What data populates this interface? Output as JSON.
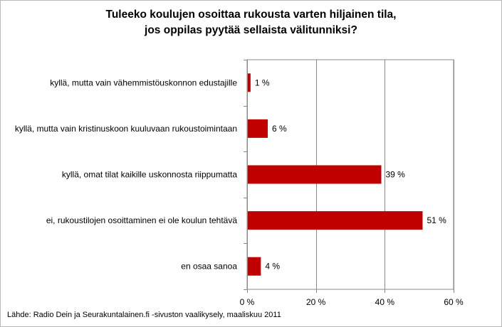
{
  "chart_data": {
    "type": "bar",
    "orientation": "horizontal",
    "title_lines": [
      "Tuleeko koulujen osoittaa rukousta varten hiljainen tila,",
      "jos oppilas pyytää sellaista välitunniksi?"
    ],
    "categories": [
      "kyllä, mutta vain vähemmistöuskonnon edustajille",
      "kyllä, mutta vain kristinuskoon kuuluvaan rukoustoimintaan",
      "kyllä, omat tilat kaikille uskonnosta riippumatta",
      "ei, rukoustilojen osoittaminen ei ole koulun tehtävä",
      "en osaa sanoa"
    ],
    "values": [
      1,
      6,
      39,
      51,
      4
    ],
    "value_labels": [
      "1 %",
      "6 %",
      "39 %",
      "51 %",
      "4 %"
    ],
    "xlim": [
      0,
      60
    ],
    "xticks": [
      0,
      20,
      40,
      60
    ],
    "xtick_labels": [
      "0 %",
      "20 %",
      "40 %",
      "60 %"
    ],
    "grid": true,
    "bar_color": "#c00000"
  },
  "footer": {
    "source": "Lähde: Radio Dein ja  Seurakuntalainen.fi -sivuston vaalikysely, maaliskuu 2011"
  }
}
